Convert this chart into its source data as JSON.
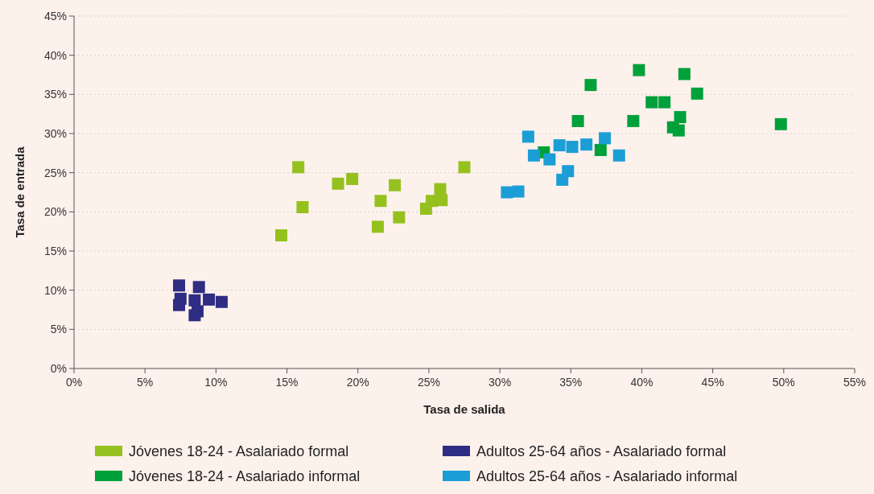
{
  "chart_data": {
    "type": "scatter",
    "xlabel": "Tasa de salida",
    "ylabel": "Tasa de entrada",
    "marker": "square",
    "grid": "y",
    "legend": "bottom",
    "xlim": [
      0,
      55
    ],
    "ylim": [
      0,
      45
    ],
    "xticks": [
      {
        "value": 0,
        "label": "0%"
      },
      {
        "value": 5,
        "label": "5%"
      },
      {
        "value": 10,
        "label": "10%"
      },
      {
        "value": 15,
        "label": "15%"
      },
      {
        "value": 20,
        "label": "20%"
      },
      {
        "value": 25,
        "label": "25%"
      },
      {
        "value": 30,
        "label": "30%"
      },
      {
        "value": 35,
        "label": "35%"
      },
      {
        "value": 40,
        "label": "40%"
      },
      {
        "value": 45,
        "label": "45%"
      },
      {
        "value": 50,
        "label": "50%"
      },
      {
        "value": 55,
        "label": "55%"
      }
    ],
    "yticks": [
      {
        "value": 0,
        "label": "0%"
      },
      {
        "value": 5,
        "label": "5%"
      },
      {
        "value": 10,
        "label": "10%"
      },
      {
        "value": 15,
        "label": "15%"
      },
      {
        "value": 20,
        "label": "20%"
      },
      {
        "value": 25,
        "label": "25%"
      },
      {
        "value": 30,
        "label": "30%"
      },
      {
        "value": 35,
        "label": "35%"
      },
      {
        "value": 40,
        "label": "40%"
      },
      {
        "value": 45,
        "label": "45%"
      }
    ],
    "series": [
      {
        "name": "Jóvenes 18-24 - Asalariado formal",
        "color": "#95c11f",
        "x": [
          14.6,
          15.8,
          16.1,
          18.6,
          19.6,
          21.4,
          21.6,
          22.6,
          22.9,
          24.8,
          25.2,
          25.8,
          25.9,
          27.5
        ],
        "values": [
          17,
          25.7,
          20.6,
          23.6,
          24.2,
          18.1,
          21.4,
          23.4,
          19.3,
          20.4,
          21.4,
          22.9,
          21.5,
          25.7
        ]
      },
      {
        "name": "Adultos 25-64 años - Asalariado formal",
        "color": "#2e2d83",
        "x": [
          7.4,
          8.8,
          7.5,
          7.4,
          8.5,
          9.5,
          10.4,
          8.7,
          8.5
        ],
        "values": [
          10.6,
          10.4,
          8.9,
          8.1,
          8.7,
          8.8,
          8.5,
          7.3,
          6.8
        ]
      },
      {
        "name": "Jóvenes 18-24 - Asalariado informal",
        "color": "#00a03a",
        "x": [
          39.8,
          43,
          36.4,
          40.7,
          41.6,
          43.9,
          35.5,
          39.4,
          42.7,
          42.2,
          42.6,
          33.1,
          37.1,
          49.8
        ],
        "values": [
          38.1,
          37.6,
          36.2,
          34,
          34,
          35.1,
          31.6,
          31.6,
          32.1,
          30.8,
          30.4,
          27.6,
          27.9,
          31.2
        ]
      },
      {
        "name": "Adultos 25-64 años - Asalariado informal",
        "color": "#1b9ed6",
        "x": [
          32,
          32.4,
          33.5,
          34.2,
          35.1,
          36.1,
          37.4,
          38.4,
          34.8,
          34.4,
          30.5,
          31.3
        ],
        "values": [
          29.6,
          27.2,
          26.7,
          28.5,
          28.3,
          28.6,
          29.4,
          27.2,
          25.2,
          24.1,
          22.5,
          22.6
        ]
      }
    ]
  }
}
